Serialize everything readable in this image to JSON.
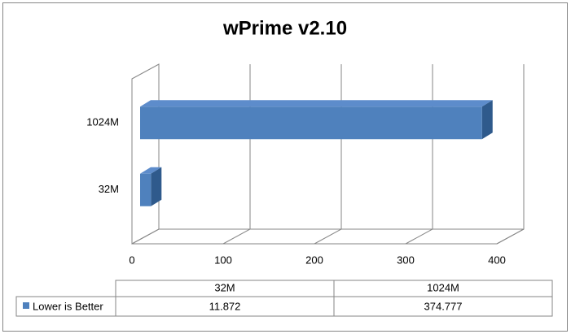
{
  "chart_data": {
    "type": "bar3d_horizontal",
    "title": "wPrime v2.10",
    "categories": [
      "32M",
      "1024M"
    ],
    "series": [
      {
        "name": "Lower is Better",
        "color": "#4f81bd",
        "values": [
          11.872,
          374.777
        ]
      }
    ],
    "xlim": [
      0,
      400
    ],
    "xticks": [
      0,
      100,
      200,
      300,
      400
    ],
    "grid": true,
    "data_table": true
  }
}
